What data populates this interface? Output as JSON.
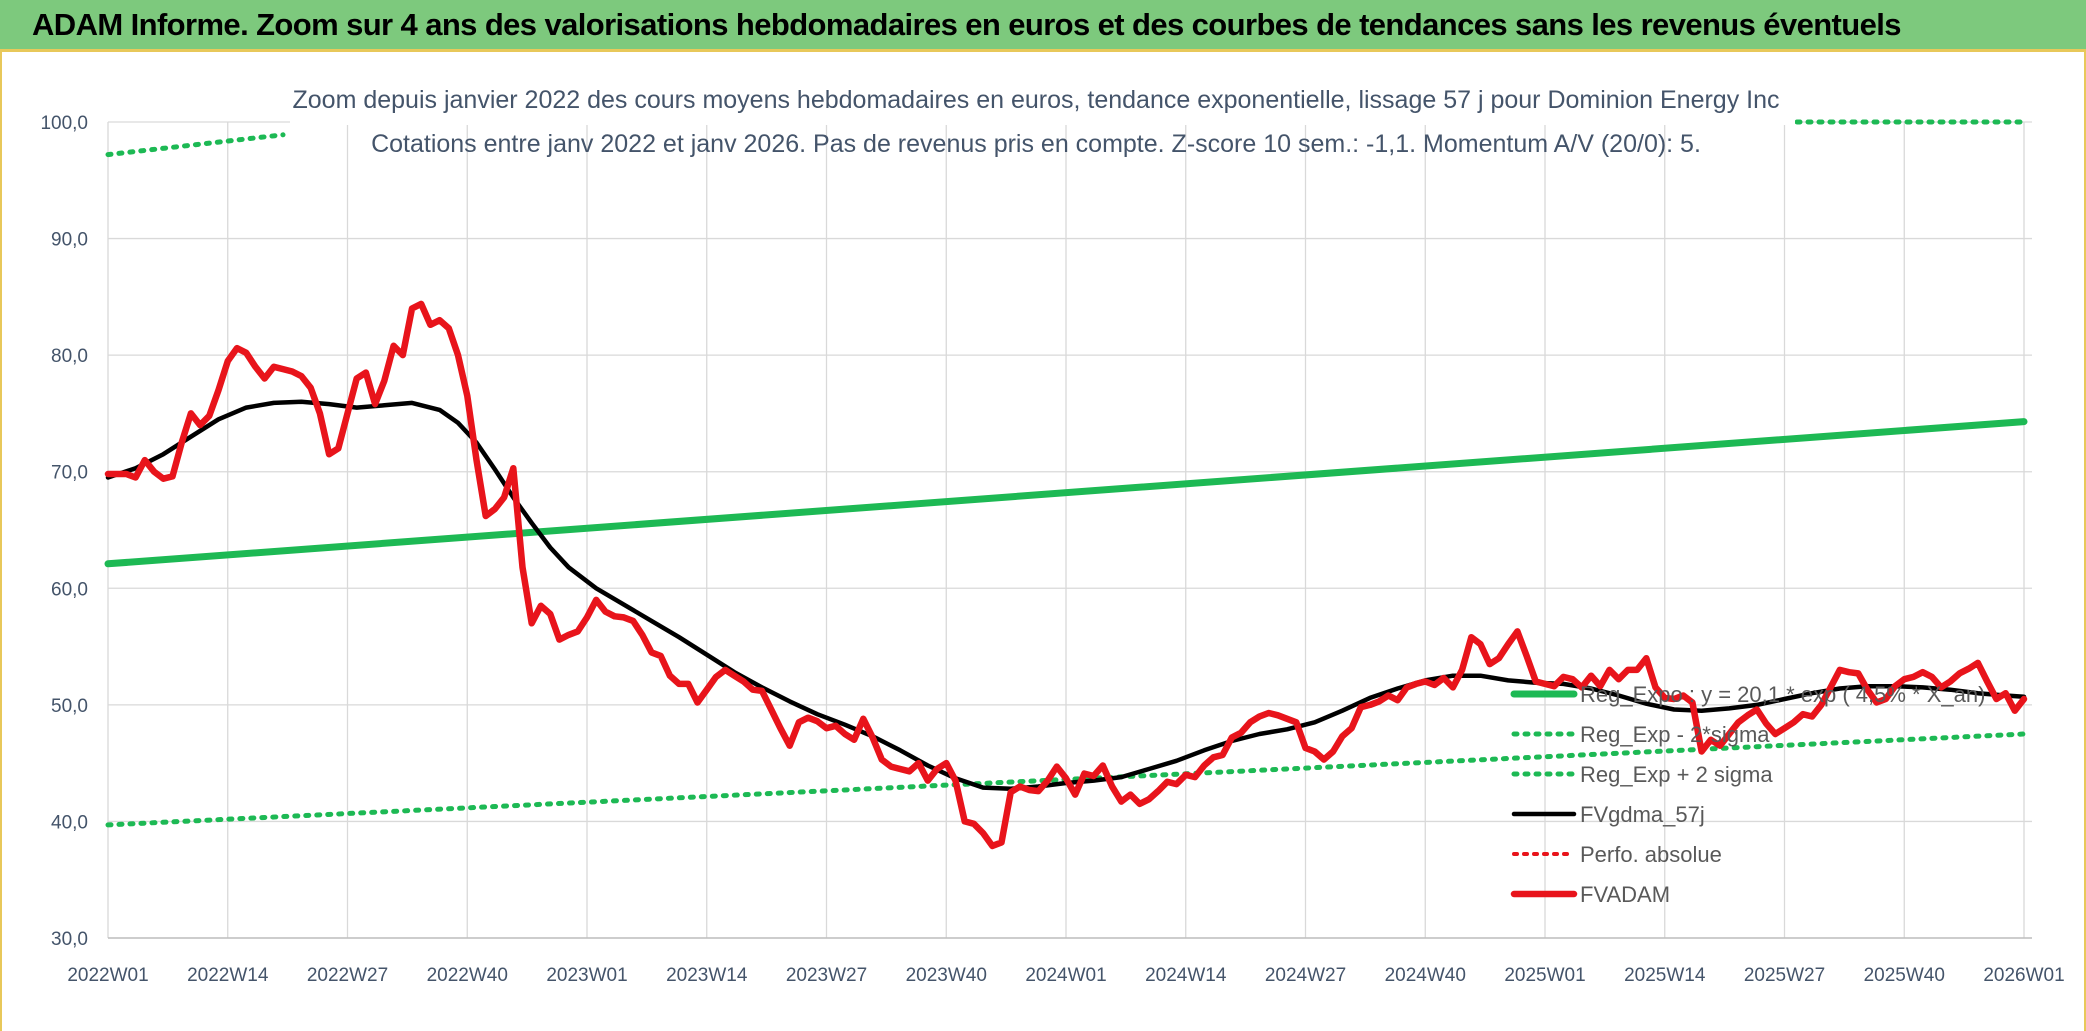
{
  "banner": {
    "title": "ADAM Informe. Zoom sur 4 ans des valorisations hebdomadaires en euros et des courbes de tendances sans les revenus éventuels"
  },
  "colors": {
    "banner_bg": "#7dc97d",
    "banner_border": "#e8c85a",
    "trend_green": "#1db954",
    "fvadam_red": "#e8141b",
    "fvgdma_black": "#000000",
    "perfo_red": "#e8141b",
    "grid": "#d9d9d9",
    "text": "#44546a"
  },
  "chart_data": {
    "type": "line",
    "title_lines": [
      "Zoom depuis janvier 2022 des cours moyens hebdomadaires en euros, tendance exponentielle, lissage 57 j pour Dominion Energy Inc",
      "Cotations entre janv 2022 et janv 2026. Pas de revenus pris en compte. Z-score 10 sem.: -1,1. Momentum A/V (20/0): 5."
    ],
    "xlabel": "",
    "ylabel": "",
    "x_ticks": [
      "2022W01",
      "2022W14",
      "2022W27",
      "2022W40",
      "2023W01",
      "2023W14",
      "2023W27",
      "2023W40",
      "2024W01",
      "2024W14",
      "2024W27",
      "2024W40",
      "2025W01",
      "2025W14",
      "2025W27",
      "2025W40",
      "2026W01"
    ],
    "x_range": [
      0,
      208
    ],
    "y_ticks": [
      "30,0",
      "40,0",
      "50,0",
      "60,0",
      "70,0",
      "80,0",
      "90,0",
      "100,0"
    ],
    "ylim": [
      30,
      100
    ],
    "grid": true,
    "legend_position": "right, lower middle",
    "series": [
      {
        "name": "Reg_Expo : y = 20,1 * exp ( 4,5% * X_an)",
        "style": "solid-green-thick",
        "x": [
          0,
          208
        ],
        "values": [
          62.1,
          74.3
        ]
      },
      {
        "name": "Reg_Exp - 2*sigma",
        "style": "dotted-green",
        "x": [
          0,
          208
        ],
        "values": [
          39.7,
          47.5
        ]
      },
      {
        "name": "Reg_Exp + 2 sigma",
        "style": "dotted-green",
        "x": [
          0,
          19,
          175,
          208
        ],
        "values": [
          97.2,
          98.9,
          100.0,
          100.0
        ],
        "visible_segments": [
          [
            0,
            19
          ],
          [
            175,
            208
          ]
        ]
      },
      {
        "name": "FVgdma_57j",
        "style": "solid-black",
        "x": [
          0,
          3,
          6,
          9,
          12,
          15,
          18,
          21,
          24,
          27,
          30,
          33,
          36,
          38,
          40,
          42,
          44,
          46,
          48,
          50,
          53,
          56,
          59,
          62,
          65,
          68,
          71,
          74,
          77,
          80,
          83,
          86,
          89,
          92,
          95,
          98,
          101,
          104,
          107,
          110,
          113,
          116,
          119,
          122,
          125,
          128,
          131,
          134,
          137,
          140,
          143,
          146,
          149,
          152,
          155,
          158,
          161,
          164,
          167,
          170,
          173,
          176,
          179,
          182,
          185,
          188,
          191,
          194,
          197,
          200,
          203,
          206,
          208
        ],
        "values": [
          69.5,
          70.3,
          71.5,
          73.0,
          74.5,
          75.5,
          75.9,
          76.0,
          75.8,
          75.5,
          75.7,
          75.9,
          75.3,
          74.2,
          72.5,
          70.2,
          67.8,
          65.6,
          63.5,
          61.8,
          60.0,
          58.6,
          57.2,
          55.8,
          54.3,
          52.8,
          51.5,
          50.3,
          49.2,
          48.3,
          47.3,
          46.1,
          44.8,
          43.7,
          42.9,
          42.8,
          43.0,
          43.3,
          43.5,
          43.8,
          44.5,
          45.2,
          46.1,
          46.9,
          47.5,
          47.9,
          48.5,
          49.5,
          50.6,
          51.4,
          52.1,
          52.5,
          52.5,
          52.1,
          51.9,
          51.8,
          51.4,
          50.8,
          50.1,
          49.6,
          49.5,
          49.7,
          50.0,
          50.5,
          51.0,
          51.4,
          51.6,
          51.6,
          51.5,
          51.3,
          51.0,
          50.8,
          50.7
        ]
      },
      {
        "name": "Perfo. absolue",
        "style": "dotted-red",
        "x": [],
        "values": []
      },
      {
        "name": "FVADAM",
        "style": "solid-red-thick",
        "x": [
          0,
          2,
          3,
          4,
          5,
          6,
          7,
          8,
          9,
          10,
          11,
          12,
          13,
          14,
          15,
          16,
          17,
          18,
          19,
          20,
          21,
          22,
          23,
          24,
          25,
          26,
          27,
          28,
          29,
          30,
          31,
          32,
          33,
          34,
          35,
          36,
          37,
          38,
          39,
          40,
          41,
          42,
          43,
          44,
          45,
          46,
          47,
          48,
          49,
          50,
          51,
          52,
          53,
          54,
          55,
          56,
          57,
          58,
          59,
          60,
          61,
          62,
          63,
          64,
          65,
          66,
          67,
          68,
          69,
          70,
          71,
          72,
          73,
          74,
          75,
          76,
          77,
          78,
          79,
          80,
          81,
          82,
          83,
          84,
          85,
          86,
          87,
          88,
          89,
          90,
          91,
          92,
          93,
          94,
          95,
          96,
          97,
          98,
          99,
          100,
          101,
          102,
          103,
          104,
          105,
          106,
          107,
          108,
          109,
          110,
          111,
          112,
          113,
          114,
          115,
          116,
          117,
          118,
          119,
          120,
          121,
          122,
          123,
          124,
          125,
          126,
          127,
          128,
          129,
          130,
          131,
          132,
          133,
          134,
          135,
          136,
          137,
          138,
          139,
          140,
          141,
          142,
          143,
          144,
          145,
          146,
          147,
          148,
          149,
          150,
          151,
          152,
          153,
          154,
          155,
          156,
          157,
          158,
          159,
          160,
          161,
          162,
          163,
          164,
          165,
          166,
          167,
          168,
          169,
          170,
          171,
          172,
          173,
          174,
          175,
          176,
          177,
          178,
          179,
          180,
          181,
          182,
          183,
          184,
          185,
          186,
          187,
          188,
          189,
          190,
          191,
          192,
          193,
          194,
          195,
          196,
          197,
          198,
          199,
          200,
          201,
          202,
          203,
          204,
          205,
          206,
          207,
          208
        ],
        "values": [
          69.8,
          69.8,
          69.5,
          71.0,
          70.0,
          69.4,
          69.6,
          72.5,
          75.0,
          74.0,
          74.8,
          77.0,
          79.5,
          80.6,
          80.2,
          79.0,
          78.0,
          79.0,
          78.8,
          78.6,
          78.2,
          77.2,
          75.0,
          71.5,
          72.0,
          75.0,
          78.0,
          78.5,
          75.8,
          77.8,
          80.8,
          80.0,
          84.0,
          84.4,
          82.6,
          83.0,
          82.3,
          80.0,
          76.5,
          71.0,
          66.2,
          66.8,
          67.8,
          70.3,
          61.8,
          57.0,
          58.5,
          57.8,
          55.6,
          56.0,
          56.3,
          57.5,
          59.0,
          58.0,
          57.6,
          57.5,
          57.2,
          56.0,
          54.5,
          54.2,
          52.5,
          51.8,
          51.8,
          50.2,
          51.3,
          52.4,
          53.0,
          52.5,
          52.0,
          51.3,
          51.2,
          49.6,
          48.0,
          46.5,
          48.5,
          48.9,
          48.6,
          48.0,
          48.2,
          47.5,
          47.0,
          48.8,
          47.2,
          45.3,
          44.7,
          44.5,
          44.3,
          45.0,
          43.5,
          44.5,
          45.0,
          43.5,
          40.0,
          39.8,
          39.0,
          37.9,
          38.2,
          42.5,
          43.0,
          42.7,
          42.6,
          43.5,
          44.7,
          43.7,
          42.3,
          44.1,
          43.9,
          44.8,
          43.0,
          41.7,
          42.3,
          41.5,
          41.9,
          42.6,
          43.4,
          43.2,
          44.0,
          43.8,
          44.8,
          45.5,
          45.7,
          47.2,
          47.6,
          48.5,
          49.0,
          49.3,
          49.1,
          48.8,
          48.5,
          46.3,
          46.0,
          45.3,
          46.0,
          47.3,
          48.0,
          49.8,
          50.0,
          50.3,
          50.8,
          50.4,
          51.5,
          51.8,
          52.0,
          51.7,
          52.3,
          51.5,
          53.0,
          55.8,
          55.2,
          53.5,
          54.0,
          55.2,
          56.3,
          54.2,
          52.0,
          51.8,
          51.6,
          52.4,
          52.2,
          51.5,
          52.5,
          51.6,
          53.0,
          52.2,
          53.0,
          53.0,
          54.0,
          51.5,
          50.6,
          50.5,
          50.8,
          50.2,
          46.0,
          47.0,
          46.5,
          47.5,
          48.5,
          49.1,
          49.6,
          48.4,
          47.5,
          48.0,
          48.5,
          49.2,
          49.0,
          50.0,
          51.5,
          53.0,
          52.8,
          52.7,
          51.3,
          50.2,
          50.5,
          51.6,
          52.2,
          52.4,
          52.8,
          52.4,
          51.5,
          52.0,
          52.7,
          53.1,
          53.6,
          52.0,
          50.5,
          51.0,
          49.5,
          50.5
        ]
      }
    ]
  }
}
